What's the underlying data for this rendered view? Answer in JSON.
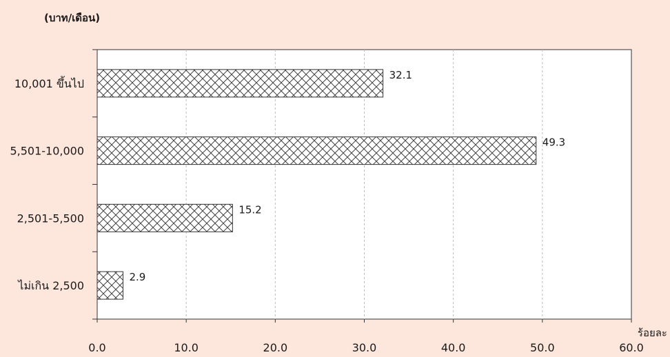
{
  "colors": {
    "background": "#fde6dc",
    "plot_area": "#ffffff",
    "bar_fill": "#ffffff",
    "hatch": "#444444",
    "axis": "#333333",
    "gridline": "#bbbbbb"
  },
  "chart_data": {
    "type": "bar",
    "orientation": "horizontal",
    "unit_label": "(บาท/เดือน)",
    "xlabel": "ร้อยละ",
    "categories": [
      "10,001 ขึ้นไป",
      "5,501-10,000",
      "2,501-5,500",
      "ไม่เกิน 2,500"
    ],
    "values": [
      32.1,
      49.3,
      15.2,
      2.9
    ],
    "value_labels": [
      "32.1",
      "49.3",
      "15.2",
      "2.9"
    ],
    "xlim": [
      0,
      60
    ],
    "xticks": [
      "0.0",
      "10.0",
      "20.0",
      "30.0",
      "40.0",
      "50.0",
      "60.0"
    ],
    "grid": "vertical dashed",
    "bar_pattern": "crosshatch"
  }
}
